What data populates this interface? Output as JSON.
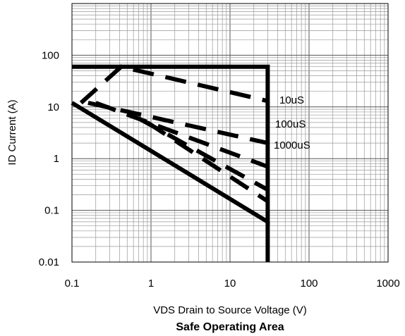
{
  "chart_data": {
    "type": "line",
    "title": "Safe Operating Area",
    "xlabel": "VDS Drain to Source Voltage (V)",
    "ylabel": "ID Current (A)",
    "x_scale": "log",
    "y_scale": "log",
    "xlim": [
      0.1,
      1000
    ],
    "ylim": [
      0.01,
      1000
    ],
    "grid": true,
    "x_ticks": [
      "0.1",
      "1",
      "10",
      "100",
      "1000"
    ],
    "y_ticks": [
      "0.01",
      "0.1",
      "1",
      "10",
      "100"
    ],
    "series": [
      {
        "style": "solid",
        "points": [
          [
            0.1,
            60
          ],
          [
            30,
            60
          ],
          [
            30,
            0.06
          ],
          [
            0.1,
            12
          ]
        ]
      },
      {
        "style": "solid",
        "points": [
          [
            30,
            0.06
          ],
          [
            30,
            0.01
          ]
        ]
      },
      {
        "style": "dashed",
        "points": [
          [
            0.13,
            12
          ],
          [
            0.42,
            60
          ],
          [
            30,
            13
          ]
        ]
      },
      {
        "style": "dashed",
        "points": [
          [
            0.16,
            12
          ],
          [
            30,
            2
          ]
        ]
      },
      {
        "style": "dashed",
        "points": [
          [
            0.2,
            12
          ],
          [
            30,
            0.7
          ]
        ]
      },
      {
        "style": "dashed",
        "points": [
          [
            0.7,
            6
          ],
          [
            30,
            0.25
          ]
        ]
      },
      {
        "style": "dashed",
        "points": [
          [
            0.9,
            5
          ],
          [
            30,
            0.15
          ]
        ]
      }
    ],
    "annotations": [
      "10uS",
      "100uS",
      "1000uS"
    ]
  }
}
